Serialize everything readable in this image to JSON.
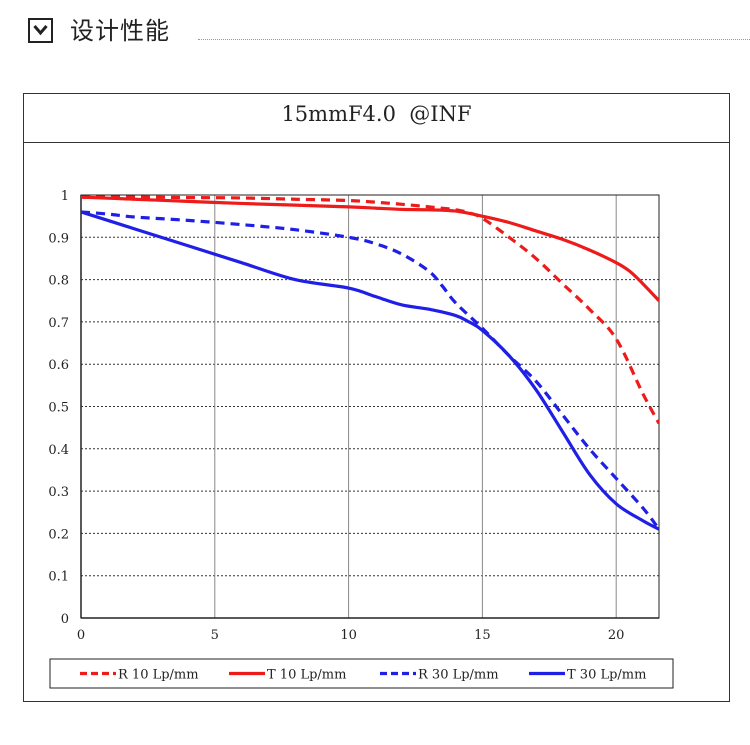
{
  "header": {
    "title": "设计性能",
    "toggle_icon": "chevron-down-icon"
  },
  "colors": {
    "red": "#ee1b1b",
    "blue": "#1f1fe6",
    "grid": "#333333",
    "axis": "#222222"
  },
  "chart_data": {
    "type": "line",
    "title": "15mmF4.0  @INF",
    "xlabel": "",
    "ylabel": "",
    "xlim": [
      0,
      21.6
    ],
    "ylim": [
      0,
      1
    ],
    "x_ticks": [
      0,
      5,
      10,
      15,
      20
    ],
    "y_ticks": [
      0,
      0.1,
      0.2,
      0.3,
      0.4,
      0.5,
      0.6,
      0.7,
      0.8,
      0.9,
      1
    ],
    "grid": {
      "vertical": "solid",
      "horizontal": "dotted"
    },
    "legend_position": "bottom",
    "series": [
      {
        "name": "R 10 Lp/mm",
        "color": "#ee1b1b",
        "dash": true,
        "x": [
          0,
          2,
          4,
          6,
          8,
          10,
          11,
          12,
          13,
          14,
          14.5,
          15,
          16,
          17,
          18,
          19,
          20,
          21,
          21.6
        ],
        "y": [
          0.995,
          0.995,
          0.994,
          0.993,
          0.99,
          0.987,
          0.983,
          0.978,
          0.972,
          0.965,
          0.958,
          0.945,
          0.9,
          0.85,
          0.79,
          0.73,
          0.66,
          0.53,
          0.46
        ]
      },
      {
        "name": "T 10 Lp/mm",
        "color": "#ee1b1b",
        "dash": false,
        "x": [
          0,
          2,
          4,
          6,
          8,
          10,
          11,
          12,
          13,
          14,
          15,
          16,
          17,
          18,
          19,
          20,
          20.5,
          21,
          21.6
        ],
        "y": [
          0.995,
          0.99,
          0.985,
          0.98,
          0.976,
          0.972,
          0.969,
          0.966,
          0.965,
          0.962,
          0.95,
          0.935,
          0.915,
          0.895,
          0.87,
          0.84,
          0.82,
          0.79,
          0.75
        ]
      },
      {
        "name": "R 30 Lp/mm",
        "color": "#1f1fe6",
        "dash": true,
        "x": [
          0,
          1,
          2,
          4,
          6,
          8,
          10,
          11,
          12,
          13,
          13.5,
          14,
          15,
          16,
          17,
          18,
          19,
          20,
          21,
          21.6
        ],
        "y": [
          0.96,
          0.955,
          0.948,
          0.94,
          0.93,
          0.918,
          0.9,
          0.885,
          0.86,
          0.82,
          0.785,
          0.745,
          0.685,
          0.62,
          0.56,
          0.48,
          0.4,
          0.33,
          0.26,
          0.21
        ]
      },
      {
        "name": "T 30 Lp/mm",
        "color": "#1f1fe6",
        "dash": false,
        "x": [
          0,
          2,
          4,
          6,
          8,
          10,
          11,
          12,
          13,
          14,
          14.5,
          15,
          16,
          17,
          18,
          19,
          20,
          21,
          21.6
        ],
        "y": [
          0.96,
          0.92,
          0.88,
          0.84,
          0.8,
          0.78,
          0.76,
          0.74,
          0.73,
          0.715,
          0.7,
          0.68,
          0.62,
          0.54,
          0.44,
          0.34,
          0.27,
          0.23,
          0.21
        ]
      }
    ]
  }
}
